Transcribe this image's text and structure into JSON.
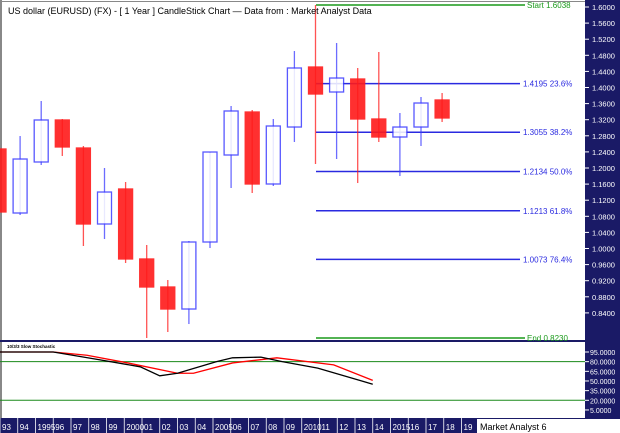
{
  "title": "US dollar (EURUSD) (FX) -  [ 1 Year ] CandleStick Chart — Data from : Market Analyst Data",
  "footer_badge": "Market Analyst 6",
  "colors": {
    "up": "#3b3bff",
    "down": "#ff1a1a",
    "fib": "#2a2ae0",
    "start_end": "#1a9a1a",
    "axis_bg": "#1a1a66",
    "stoch_k": "#000000",
    "stoch_d": "#ff0000",
    "stoch_levels": "#1a8a1a"
  },
  "chart_data": [
    {
      "type": "candlestick",
      "title": "US dollar (EURUSD) (FX) -  [ 1 Year ] CandleStick Chart",
      "ylim": [
        0.823,
        1.6038
      ],
      "y_ticks": [
        "1.6000",
        "1.5600",
        "1.5200",
        "1.4800",
        "1.4400",
        "1.4000",
        "1.3600",
        "1.3200",
        "1.2800",
        "1.2400",
        "1.2000",
        "1.1600",
        "1.1200",
        "1.0800",
        "1.0400",
        "1.0000",
        "0.9600",
        "0.9200",
        "0.8800",
        "0.8400"
      ],
      "x_ticks": [
        "93",
        "94",
        "1995",
        "96",
        "97",
        "98",
        "99",
        "2000",
        "01",
        "02",
        "03",
        "04",
        "2005",
        "06",
        "07",
        "08",
        "09",
        "2010",
        "11",
        "12",
        "13",
        "14",
        "2015",
        "16",
        "17",
        "18",
        "19"
      ],
      "candles": [
        {
          "year": 1993,
          "o": 1.2662,
          "h": 1.2662,
          "l": 1.1185,
          "c": 1.1185
        },
        {
          "year": 1994,
          "o": 1.1161,
          "h": 1.2966,
          "l": 1.1114,
          "c": 1.2427
        },
        {
          "year": 1995,
          "o": 1.2357,
          "h": 1.3787,
          "l": 1.2287,
          "c": 1.3342
        },
        {
          "year": 1996,
          "o": 1.3342,
          "h": 1.3365,
          "l": 1.2498,
          "c": 1.2709
        },
        {
          "year": 1997,
          "o": 1.2685,
          "h": 1.2732,
          "l": 1.0387,
          "c": 1.0903
        },
        {
          "year": 1998,
          "o": 1.0903,
          "h": 1.2216,
          "l": 1.0551,
          "c": 1.1653
        },
        {
          "year": 1999,
          "o": 1.1724,
          "h": 1.1888,
          "l": 0.9989,
          "c": 1.0083
        },
        {
          "year": 2000,
          "o": 1.0083,
          "h": 1.0411,
          "l": 0.823,
          "c": 0.9426
        },
        {
          "year": 2001,
          "o": 0.9426,
          "h": 0.959,
          "l": 0.8371,
          "c": 0.891
        },
        {
          "year": 2002,
          "o": 0.891,
          "h": 1.0505,
          "l": 0.8558,
          "c": 1.0481
        },
        {
          "year": 2003,
          "o": 1.0481,
          "h": 1.2591,
          "l": 1.034,
          "c": 1.2591
        },
        {
          "year": 2004,
          "o": 1.2521,
          "h": 1.367,
          "l": 1.1747,
          "c": 1.3553
        },
        {
          "year": 2005,
          "o": 1.3529,
          "h": 1.3576,
          "l": 1.163,
          "c": 1.1841
        },
        {
          "year": 2006,
          "o": 1.1841,
          "h": 1.3365,
          "l": 1.1794,
          "c": 1.3201
        },
        {
          "year": 2007,
          "o": 1.3177,
          "h": 1.4959,
          "l": 1.2826,
          "c": 1.4561
        },
        {
          "year": 2008,
          "o": 1.4584,
          "h": 1.6038,
          "l": 1.231,
          "c": 1.3951
        },
        {
          "year": 2009,
          "o": 1.3998,
          "h": 1.5147,
          "l": 1.2427,
          "c": 1.4326
        },
        {
          "year": 2010,
          "o": 1.4303,
          "h": 1.4561,
          "l": 1.1864,
          "c": 1.3365
        },
        {
          "year": 2011,
          "o": 1.3365,
          "h": 1.4936,
          "l": 1.2826,
          "c": 1.2943
        },
        {
          "year": 2012,
          "o": 1.2943,
          "h": 1.3506,
          "l": 1.2029,
          "c": 1.3177
        },
        {
          "year": 2013,
          "o": 1.3177,
          "h": 1.3881,
          "l": 1.2732,
          "c": 1.374
        },
        {
          "year": 2014,
          "o": 1.3811,
          "h": 1.3975,
          "l": 1.3295,
          "c": 1.3389
        }
      ],
      "fib_levels": [
        {
          "price": 1.6038,
          "label": "Start 1.6038",
          "kind": "start"
        },
        {
          "price": 1.4195,
          "label": "1.4195 23.6%",
          "kind": "fib"
        },
        {
          "price": 1.3055,
          "label": "1.3055 38.2%",
          "kind": "fib"
        },
        {
          "price": 1.2134,
          "label": "1.2134 50.0%",
          "kind": "fib"
        },
        {
          "price": 1.1213,
          "label": "1.1213 61.8%",
          "kind": "fib"
        },
        {
          "price": 1.0073,
          "label": "1.0073 76.4%",
          "kind": "fib"
        },
        {
          "price": 0.823,
          "label": "End 0.8230",
          "kind": "end"
        }
      ]
    },
    {
      "type": "line",
      "title": "10/3/3 Slow Stochastic",
      "ylim": [
        5,
        95
      ],
      "y_ticks": [
        "95.0000",
        "80.0000",
        "65.0000",
        "50.0000",
        "35.0000",
        "20.0000",
        "5.0000"
      ],
      "levels": [
        80,
        20
      ],
      "series": [
        {
          "color": "#ff0000",
          "points": [
            [
              1993,
              95
            ],
            [
              1996,
              95
            ],
            [
              1997.9,
              90
            ],
            [
              2000.2,
              78
            ],
            [
              2003,
              62
            ],
            [
              2003.9,
              62
            ],
            [
              2006.1,
              78
            ],
            [
              2008.6,
              86
            ],
            [
              2011.8,
              75
            ],
            [
              2014,
              51
            ]
          ]
        },
        {
          "color": "#000000",
          "points": [
            [
              1993,
              95
            ],
            [
              1996,
              95
            ],
            [
              1998.6,
              83
            ],
            [
              2000.9,
              72
            ],
            [
              2002,
              58
            ],
            [
              2003,
              62
            ],
            [
              2005.2,
              80
            ],
            [
              2006.1,
              86
            ],
            [
              2007.7,
              87
            ],
            [
              2008.9,
              80
            ],
            [
              2010.9,
              70
            ],
            [
              2014,
              45
            ]
          ]
        }
      ]
    }
  ]
}
